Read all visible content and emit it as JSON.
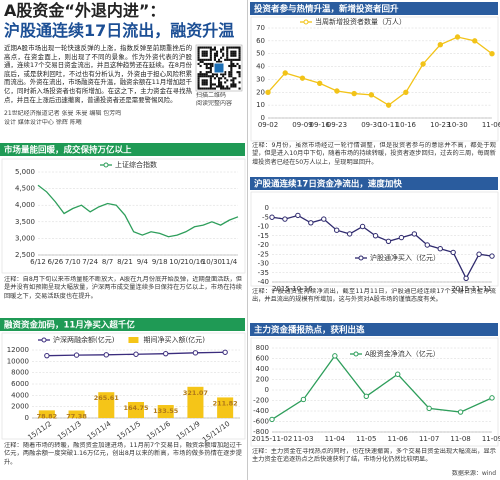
{
  "header": {
    "title": "A股资金“外退内进”：",
    "subtitle": "沪股通连续17日流出，融资升温",
    "body": "近期A股市场出现一轮快速反弹的上涨，指数反弹至前期重挫后的高点，在资金面上，则出现了不同的景象。作为外资代表的沪股通，连续17个交易日资金流出，并且这种趋势还在延续。在8月份底后，或是获利回吐，不过也有分析认为，外资由于担心风险积累而流出。外资在流出，市场融资在升温，融资余额在11月增加超千亿，同时新入场投资者也有所增加。在这之下，主力资金在寻找热点，并且在上涨后迅速撤离，普通投资者还是需要警惕风险。",
    "qr_caption": [
      "扫描二维码",
      "阅读完整内容"
    ],
    "byline": [
      "21世纪经济报道记者 张曼 朱曼 编辑 包芳鸣",
      "设计 媒体设计中心 徐辉 陈曦"
    ]
  },
  "chart_data": [
    {
      "type": "line",
      "title": "市场量能回暖，成交保持万亿以上",
      "note": "注释：自8月下旬以来市场量能不断放大，A股在九月份底开始反弹，近期盘面活跃，但是并没有如预期呈现大幅放量，沪深两市成交量连续多日保持在万亿以上，市场在持续回暖之下，交易活跃度也在提升。",
      "categories": [
        "6/12",
        null,
        "6/26",
        null,
        "7/10",
        null,
        "7/24",
        null,
        "8/7",
        null,
        "8/21",
        null,
        "9/4",
        null,
        "9/18",
        null,
        "10/2",
        null,
        "10/16",
        null,
        "10/30",
        null,
        "11/4",
        null
      ],
      "series": [
        {
          "name": "上证综合指数",
          "color": "#2e9e5b",
          "values": [
            4600,
            4400,
            4100,
            3750,
            3900,
            4000,
            3800,
            3950,
            4050,
            4000,
            3700,
            3200,
            3100,
            3200,
            3150,
            3050,
            3100,
            3200,
            3350,
            3400,
            3500,
            3400,
            3550,
            3650
          ]
        }
      ],
      "ylim": [
        2500,
        5000
      ],
      "yticks": [
        {
          "value": 2500,
          "label": "2,500"
        },
        {
          "value": 3000,
          "label": "3,000"
        },
        {
          "value": 3500,
          "label": "3,500"
        },
        {
          "value": 4000,
          "label": "4,000"
        },
        {
          "value": 4500,
          "label": "4,500"
        },
        {
          "value": 5000,
          "label": "5,000"
        }
      ],
      "grid": true
    },
    {
      "type": "line",
      "title": "投资者参与热情升温，新增投资者回升",
      "note": "注释：9月份，虽然市场经过一轮行情调整，但是投资者参与的意愿并不高，都处于观望，但是进入10月中下旬，随着市场的持续转暖，投资者逐步回归，过去的三周，每周新增投资者已经在50万人以上，呈现明显回升。",
      "categories": [
        "09-02",
        null,
        "09-09",
        "09-16",
        "09-23",
        null,
        "09-30",
        "10-11",
        "10-16",
        null,
        "10-23",
        "10-30",
        null,
        "11-06"
      ],
      "series": [
        {
          "name": "当周新增投资者数量（万人）",
          "color": "#f2c318",
          "values": [
            20,
            35,
            31,
            27,
            21,
            19,
            18,
            10,
            20,
            42,
            57,
            63,
            60,
            50
          ]
        }
      ],
      "ylim": [
        0,
        70
      ],
      "yticks": [
        0,
        10,
        20,
        30,
        40,
        50,
        60,
        70
      ],
      "grid": true
    },
    {
      "type": "bar_line",
      "title": "融资资金加码，11月净买入超千亿",
      "note": "注释：随着市场的转暖，融资资金加速进场，11月前7个交易日，融资余额增加超过千亿元，两融余额一度突破1.16万亿元，创出8月以来的新高，市场的做多热情在逐步提升。",
      "categories": [
        "15/11/2",
        "15/11/3",
        "15/11/4",
        "15/11/5",
        "15/11/6",
        "15/11/9",
        "15/11/10"
      ],
      "series": [
        {
          "name": "沪深两融余额(亿元)",
          "type": "line",
          "color": "#3b2d7d",
          "values": [
            11000,
            11100,
            11150,
            11250,
            11350,
            11500,
            11600
          ]
        },
        {
          "name": "期间净买入额(亿元)",
          "type": "bar",
          "axis": "y2",
          "color": "#f5c518",
          "values": [
            78.82,
            77.38,
            265.61,
            164.75,
            133.55,
            321.07,
            211.82
          ]
        }
      ],
      "ylim": [
        0,
        12000
      ],
      "yticks": [
        0,
        2000,
        4000,
        6000,
        8000,
        10000,
        12000
      ],
      "y2lim": [
        0,
        700
      ],
      "grid": true
    },
    {
      "type": "line",
      "title": "沪股通连续17日资金净流出，速度加快",
      "note": "注释：沪股通资金持续净流出，截至11月11日，沪股通已经连续17个交易日资金净流出，并且流出的规模有所增加，这与外资对A股市场的谨慎态度有关。",
      "categories": [
        "2015-10-16",
        null,
        null,
        null,
        null,
        null,
        null,
        null,
        null,
        null,
        null,
        null,
        null,
        null,
        null,
        null,
        null,
        "2015-11-11"
      ],
      "series": [
        {
          "name": "沪股通净买入（亿元）",
          "color": "#2f2a6e",
          "values": [
            -5,
            -6,
            -4,
            -8,
            -6,
            -12,
            -14,
            -10,
            -15,
            -18,
            -16,
            -14,
            -20,
            -22,
            -24,
            -38,
            -25,
            -26
          ]
        }
      ],
      "ylim": [
        -40,
        0
      ],
      "yticks": [
        -40,
        -35,
        -30,
        -25,
        -20,
        -15,
        -10,
        -5,
        0
      ],
      "grid": true
    },
    {
      "type": "line",
      "title": "主力资金播报热点，获利出逃",
      "note": "注释：主力资金在寻找热点的同时，也在快速撤离，多个交易日资金出现大幅流出，显示主力资金在追逐热点之后快速获利了结，市场分化仍然比较明显。",
      "source": "数据来源：wind",
      "categories": [
        "2015-11-02",
        "11-03",
        "11-04",
        "11-05",
        "11-06",
        "11-07",
        "11-08",
        "11-09"
      ],
      "series": [
        {
          "name": "A股资金净流入（亿元）",
          "color": "#2e9e5b",
          "values": [
            -560,
            -180,
            650,
            -120,
            300,
            -350,
            -420,
            -150
          ]
        }
      ],
      "ylim": [
        -800,
        800
      ],
      "yticks": [
        -800,
        -600,
        -400,
        -200,
        0,
        200,
        400,
        600,
        800
      ],
      "grid": true
    }
  ]
}
